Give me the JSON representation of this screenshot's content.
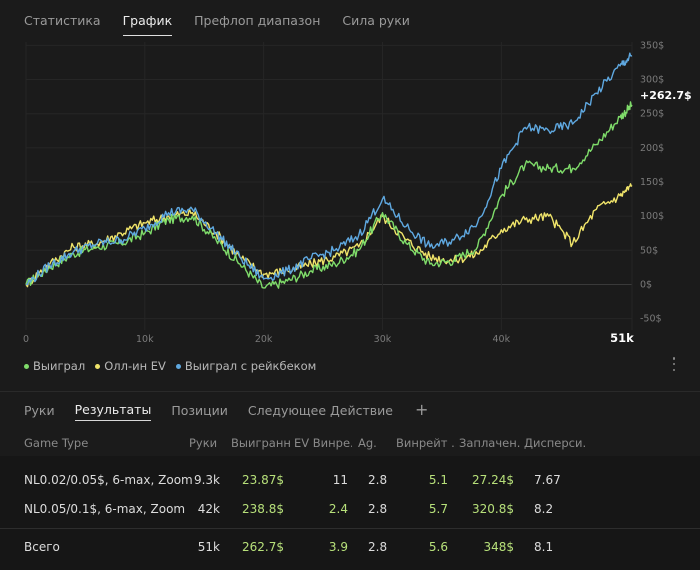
{
  "top_tabs": [
    {
      "label": "Статистика",
      "active": false
    },
    {
      "label": "График",
      "active": true
    },
    {
      "label": "Префлоп диапазон",
      "active": false
    },
    {
      "label": "Сила руки",
      "active": false
    }
  ],
  "chart_data": {
    "type": "line",
    "x_ticks": [
      "0",
      "10k",
      "20k",
      "30k",
      "40k",
      "51k"
    ],
    "x_tick_values": [
      0,
      10000,
      20000,
      30000,
      40000,
      51000
    ],
    "y_ticks": [
      "350$",
      "300$",
      "250$",
      "200$",
      "150$",
      "100$",
      "50$",
      "0$",
      "-50$"
    ],
    "y_tick_values": [
      350,
      300,
      250,
      200,
      150,
      100,
      50,
      0,
      -50
    ],
    "ylim": [
      -55,
      355
    ],
    "xlim": [
      0,
      51000
    ],
    "end_label": "+262.7$",
    "series": [
      {
        "name": "Выиграл",
        "color": "#7fdc6a",
        "x": [
          0,
          2000,
          4000,
          6000,
          8000,
          10000,
          12000,
          14000,
          16000,
          18000,
          20000,
          22000,
          24000,
          26000,
          28000,
          30000,
          32000,
          34000,
          36000,
          38000,
          40000,
          42000,
          44000,
          46000,
          48000,
          50000,
          51000
        ],
        "y": [
          0,
          25,
          45,
          55,
          60,
          75,
          95,
          100,
          65,
          30,
          -5,
          5,
          20,
          30,
          50,
          105,
          60,
          30,
          35,
          55,
          130,
          175,
          170,
          170,
          205,
          245,
          262.7
        ]
      },
      {
        "name": "Олл-ин EV",
        "color": "#f0e46a",
        "x": [
          0,
          2000,
          4000,
          6000,
          8000,
          10000,
          12000,
          14000,
          16000,
          18000,
          20000,
          22000,
          24000,
          26000,
          28000,
          30000,
          32000,
          34000,
          36000,
          38000,
          40000,
          42000,
          44000,
          46000,
          48000,
          50000,
          51000
        ],
        "y": [
          0,
          30,
          55,
          60,
          75,
          90,
          100,
          105,
          75,
          40,
          15,
          20,
          30,
          40,
          55,
          100,
          65,
          40,
          35,
          45,
          80,
          95,
          100,
          60,
          110,
          130,
          145
        ]
      },
      {
        "name": "Выиграл с рейкбеком",
        "color": "#5fa8e0",
        "x": [
          0,
          2000,
          4000,
          6000,
          8000,
          10000,
          12000,
          14000,
          16000,
          18000,
          20000,
          22000,
          24000,
          26000,
          28000,
          30000,
          32000,
          34000,
          36000,
          38000,
          40000,
          42000,
          44000,
          46000,
          48000,
          50000,
          51000
        ],
        "y": [
          0,
          28,
          48,
          60,
          65,
          82,
          105,
          110,
          75,
          40,
          8,
          20,
          38,
          50,
          72,
          125,
          85,
          55,
          65,
          90,
          170,
          230,
          225,
          235,
          280,
          320,
          335
        ]
      }
    ],
    "grid": true,
    "legend_position": "bottom-left"
  },
  "legend": [
    {
      "label": "Выиграл",
      "color": "#7fdc6a"
    },
    {
      "label": "Олл-ин EV",
      "color": "#f0e46a"
    },
    {
      "label": "Выиграл с рейкбеком",
      "color": "#5fa8e0"
    }
  ],
  "bottom_tabs": [
    {
      "label": "Руки",
      "active": false
    },
    {
      "label": "Результаты",
      "active": true
    },
    {
      "label": "Позиции",
      "active": false
    },
    {
      "label": "Следующее Действие",
      "active": false
    }
  ],
  "add_tab_icon": "plus-icon",
  "more_icon": "kebab-menu-icon",
  "table": {
    "headers": [
      "Game Type",
      "Руки",
      "Выигранно",
      "EV Винре...",
      "Ag.",
      "Винрейт ...",
      "Заплачен...",
      "Дисперси..."
    ],
    "rows": [
      [
        "NL0.02/0.05$, 6-max, Zoom",
        "9.3k",
        "23.87$",
        "11",
        "2.8",
        "5.1",
        "27.24$",
        "7.67"
      ],
      [
        "NL0.05/0.1$, 6-max, Zoom",
        "42k",
        "238.8$",
        "2.4",
        "2.8",
        "5.7",
        "320.8$",
        "8.2"
      ]
    ],
    "total": [
      "Всего",
      "51k",
      "262.7$",
      "3.9",
      "2.8",
      "5.6",
      "348$",
      "8.1"
    ]
  }
}
